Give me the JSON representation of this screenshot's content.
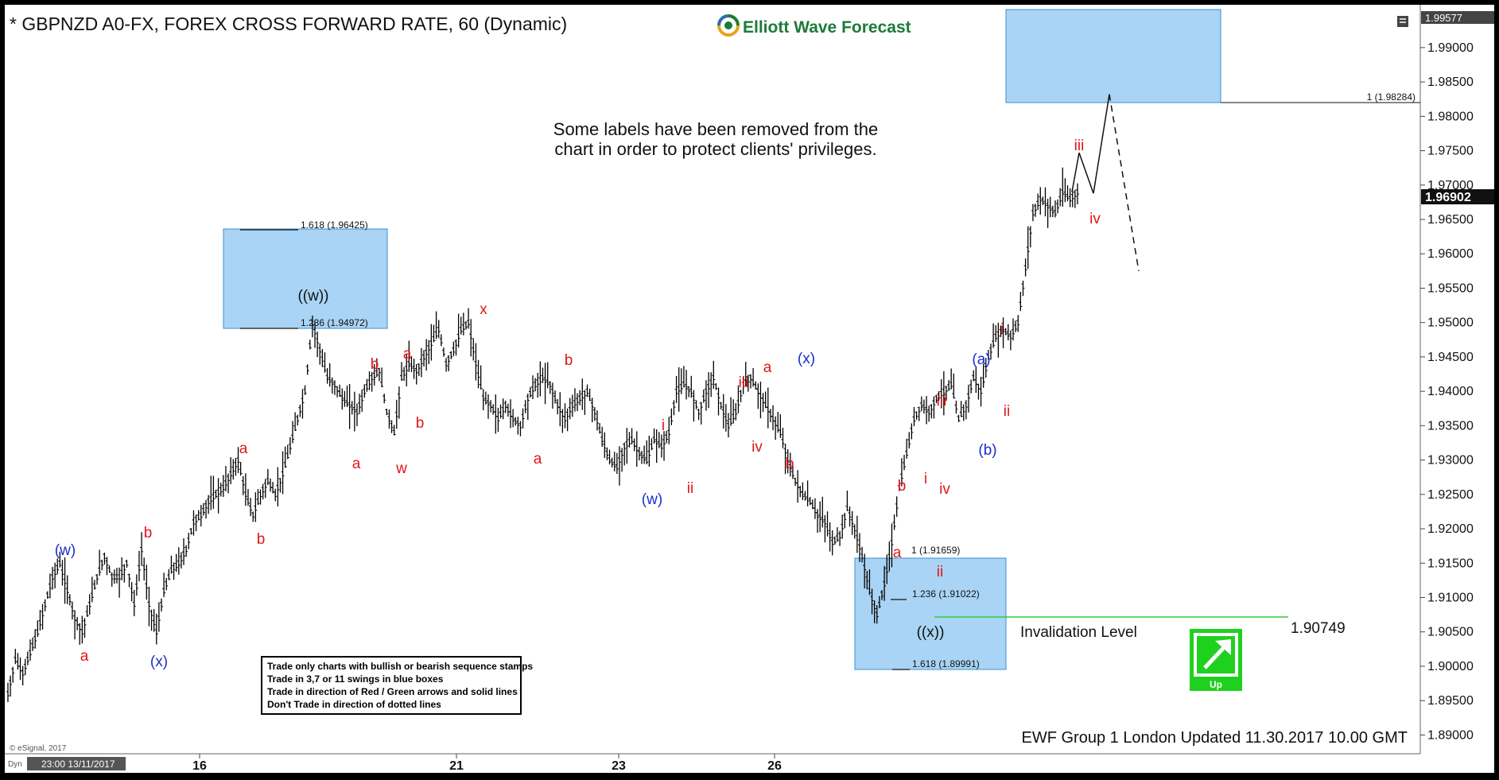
{
  "header": {
    "title": "* GBPNZD A0-FX, FOREX CROSS FORWARD RATE, 60 (Dynamic)",
    "brand": "Elliott Wave Forecast"
  },
  "note": {
    "line1": "Some labels have been removed from the",
    "line2": "chart in order to protect clients' privileges."
  },
  "rules": [
    "Trade only charts with bullish or bearish sequence stamps",
    "Trade in 3,7 or 11 swings in blue boxes",
    "Trade in direction of Red / Green arrows and solid lines",
    "Don't Trade in direction of dotted lines"
  ],
  "footer": "EWF Group 1 London Updated 11.30.2017 10.00 GMT",
  "copyright": "© eSignal, 2017",
  "invalidation": {
    "label": "Invalidation Level",
    "value": "1.90749"
  },
  "up_label": "Up",
  "x_start_label": "23:00 13/11/2017",
  "x_prefix": "Dyn",
  "price_labels": {
    "top": "1.99577",
    "last": "1.96902"
  },
  "fib_labels": {
    "top_box_1618": "1.618 (1.96425)",
    "top_box_1236": "1.236 (1.94972)",
    "target_1": "1 (1.98284)",
    "low_box_1": "1 (1.91659)",
    "low_box_1236": "1.236 (1.91022)",
    "low_box_1618": "1.618 (1.89991)"
  },
  "colors": {
    "blue_box": "#a9d4f5",
    "red_label": "#e0161b",
    "blue_label": "#1a2ecc",
    "up_arrow": "#1fd11f",
    "invalidation_line": "#33cc33",
    "brand_green": "#1d7a3a"
  },
  "chart_data": {
    "type": "line",
    "title": "* GBPNZD A0-FX, FOREX CROSS FORWARD RATE, 60 (Dynamic)",
    "ylim": [
      1.8875,
      1.996
    ],
    "y_ticks": [
      "1.99000",
      "1.98500",
      "1.98000",
      "1.97500",
      "1.97000",
      "1.96500",
      "1.96000",
      "1.95500",
      "1.95000",
      "1.94500",
      "1.94000",
      "1.93500",
      "1.93000",
      "1.92500",
      "1.92000",
      "1.91500",
      "1.91000",
      "1.90500",
      "1.90000",
      "1.89500",
      "1.89000"
    ],
    "x_ticks": [
      "16",
      "21",
      "23",
      "26"
    ],
    "series": [
      {
        "values": [
          1.896,
          1.901,
          1.899,
          1.902,
          1.905,
          1.909,
          1.913,
          1.915,
          1.911,
          1.907,
          1.905,
          1.909,
          1.913,
          1.916,
          1.913,
          1.913,
          1.915,
          1.909,
          1.917,
          1.909,
          1.905,
          1.911,
          1.914,
          1.915,
          1.917,
          1.921,
          1.922,
          1.924,
          1.925,
          1.926,
          1.928,
          1.93,
          1.925,
          1.922,
          1.925,
          1.927,
          1.925,
          1.928,
          1.932,
          1.936,
          1.94,
          1.95,
          1.946,
          1.942,
          1.941,
          1.939,
          1.938,
          1.937,
          1.94,
          1.942,
          1.943,
          1.937,
          1.934,
          1.942,
          1.944,
          1.943,
          1.945,
          1.947,
          1.949,
          1.944,
          1.946,
          1.949,
          1.95,
          1.944,
          1.939,
          1.938,
          1.936,
          1.938,
          1.936,
          1.935,
          1.939,
          1.941,
          1.942,
          1.941,
          1.938,
          1.936,
          1.938,
          1.939,
          1.94,
          1.937,
          1.933,
          1.93,
          1.929,
          1.932,
          1.933,
          1.931,
          1.93,
          1.933,
          1.932,
          1.934,
          1.94,
          1.941,
          1.94,
          1.937,
          1.94,
          1.942,
          1.938,
          1.935,
          1.937,
          1.941,
          1.942,
          1.94,
          1.938,
          1.936,
          1.934,
          1.93,
          1.927,
          1.925,
          1.924,
          1.922,
          1.921,
          1.918,
          1.919,
          1.923,
          1.92,
          1.916,
          1.911,
          1.9075,
          1.912,
          1.918,
          1.926,
          1.931,
          1.936,
          1.938,
          1.937,
          1.939,
          1.94,
          1.941,
          1.936,
          1.938,
          1.942,
          1.94,
          1.945,
          1.948,
          1.949,
          1.948,
          1.95,
          1.958,
          1.966,
          1.968,
          1.967,
          1.966,
          1.969,
          1.968,
          1.969
        ]
      }
    ],
    "projection": [
      1.969,
      1.9747,
      1.9688,
      1.9832,
      1.9575
    ],
    "grid": false
  },
  "wave_labels": [
    {
      "t": "(w)",
      "c": "blue"
    },
    {
      "t": "a",
      "c": "red"
    },
    {
      "t": "b",
      "c": "red"
    },
    {
      "t": "(x)",
      "c": "blue"
    },
    {
      "t": "a",
      "c": "red"
    },
    {
      "t": "b",
      "c": "red"
    },
    {
      "t": "((w))",
      "c": "black"
    },
    {
      "t": "a",
      "c": "red"
    },
    {
      "t": "b",
      "c": "red"
    },
    {
      "t": "w",
      "c": "red"
    },
    {
      "t": "a",
      "c": "red"
    },
    {
      "t": "b",
      "c": "red"
    },
    {
      "t": "x",
      "c": "red"
    },
    {
      "t": "b",
      "c": "red"
    },
    {
      "t": "a",
      "c": "red"
    },
    {
      "t": "i",
      "c": "red"
    },
    {
      "t": "(w)",
      "c": "blue"
    },
    {
      "t": "ii",
      "c": "red"
    },
    {
      "t": "iii",
      "c": "red"
    },
    {
      "t": "iv",
      "c": "red"
    },
    {
      "t": "a",
      "c": "red"
    },
    {
      "t": "b",
      "c": "red"
    },
    {
      "t": "(x)",
      "c": "blue"
    },
    {
      "t": "b",
      "c": "red"
    },
    {
      "t": "a",
      "c": "red"
    },
    {
      "t": "i",
      "c": "red"
    },
    {
      "t": "iv",
      "c": "red"
    },
    {
      "t": "ii",
      "c": "red"
    },
    {
      "t": "iii",
      "c": "red"
    },
    {
      "t": "((x))",
      "c": "black"
    },
    {
      "t": "(a)",
      "c": "blue"
    },
    {
      "t": "(b)",
      "c": "blue"
    },
    {
      "t": "i",
      "c": "red"
    },
    {
      "t": "ii",
      "c": "red"
    },
    {
      "t": "iii",
      "c": "red"
    },
    {
      "t": "iv",
      "c": "red"
    }
  ]
}
